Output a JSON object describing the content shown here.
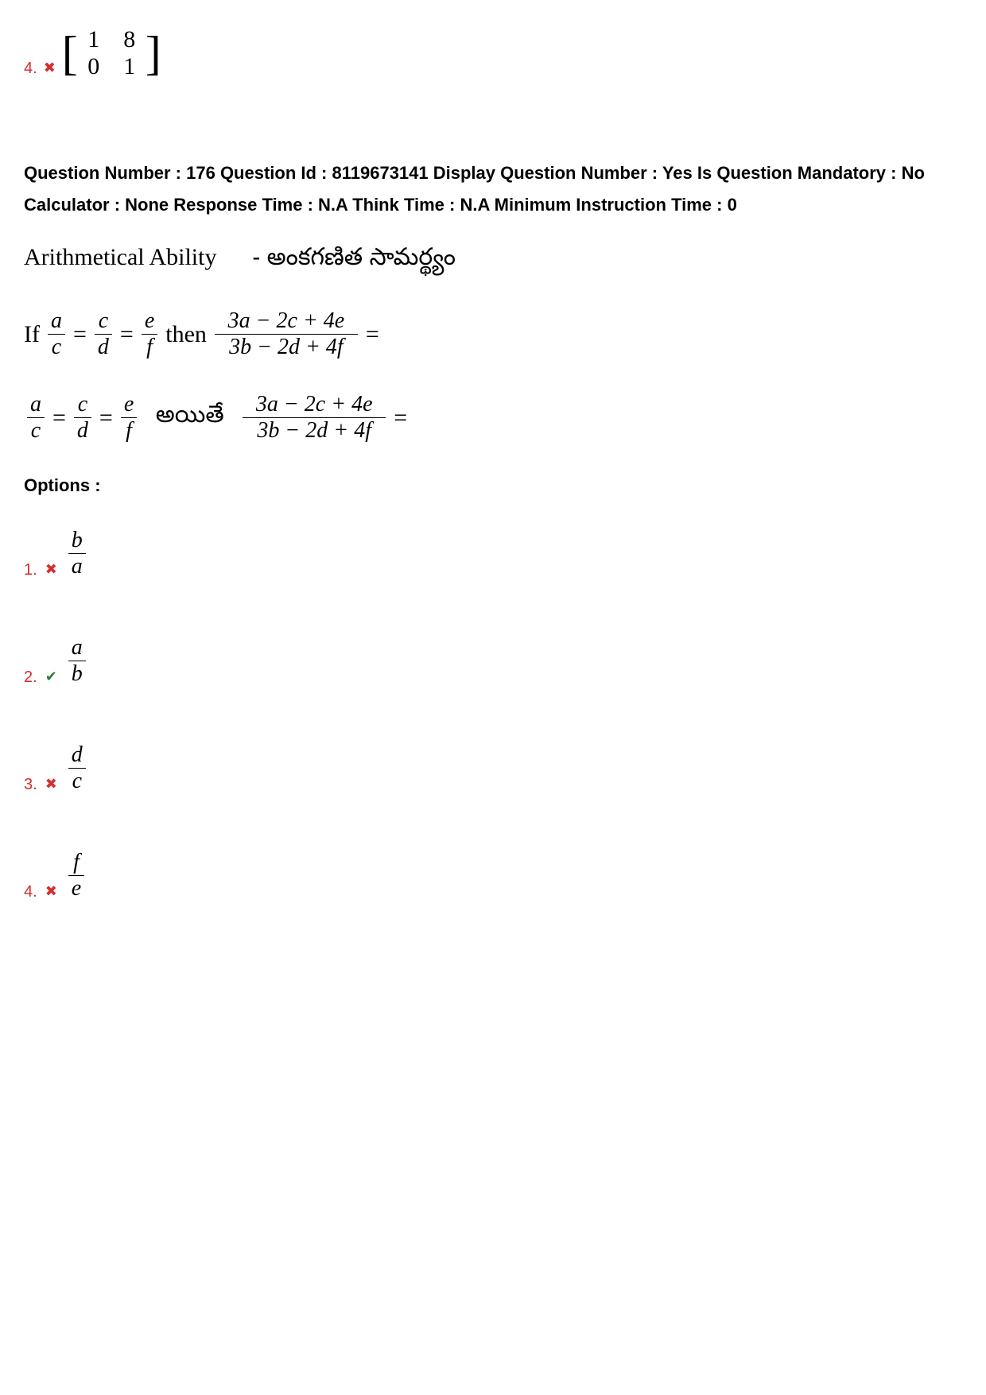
{
  "prev_option": {
    "number": "4.",
    "mark": "✖",
    "matrix": [
      [
        "1",
        "8"
      ],
      [
        "0",
        "1"
      ]
    ]
  },
  "question_meta": "Question Number : 176 Question Id : 8119673141 Display Question Number : Yes Is Question Mandatory : No Calculator : None Response Time : N.A Think Time : N.A Minimum Instruction Time : 0",
  "section_title_en": "Arithmetical Ability",
  "section_title_te": "- అంకగణిత సామర్థ్యం",
  "equation_en": {
    "prefix": "If",
    "lhs_fracs": [
      {
        "num": "a",
        "den": "c"
      },
      {
        "num": "c",
        "den": "d"
      },
      {
        "num": "e",
        "den": "f"
      }
    ],
    "then": "then",
    "rhs_frac": {
      "num": "3a − 2c + 4e",
      "den": "3b − 2d + 4f"
    },
    "equals": "="
  },
  "equation_te": {
    "lhs_fracs": [
      {
        "num": "a",
        "den": "c"
      },
      {
        "num": "c",
        "den": "d"
      },
      {
        "num": "e",
        "den": "f"
      }
    ],
    "then": "అయితే",
    "rhs_frac": {
      "num": "3a − 2c + 4e",
      "den": "3b − 2d + 4f"
    },
    "equals": "="
  },
  "options_label": "Options :",
  "options": [
    {
      "number": "1.",
      "mark": "✖",
      "mark_type": "wrong",
      "num": "b",
      "den": "a"
    },
    {
      "number": "2.",
      "mark": "✔",
      "mark_type": "correct",
      "num": "a",
      "den": "b"
    },
    {
      "number": "3.",
      "mark": "✖",
      "mark_type": "wrong",
      "num": "d",
      "den": "c"
    },
    {
      "number": "4.",
      "mark": "✖",
      "mark_type": "wrong",
      "num": "f",
      "den": "e"
    }
  ],
  "colors": {
    "wrong": "#d32f2f",
    "correct": "#2e7d32",
    "text": "#000000",
    "background": "#ffffff"
  }
}
